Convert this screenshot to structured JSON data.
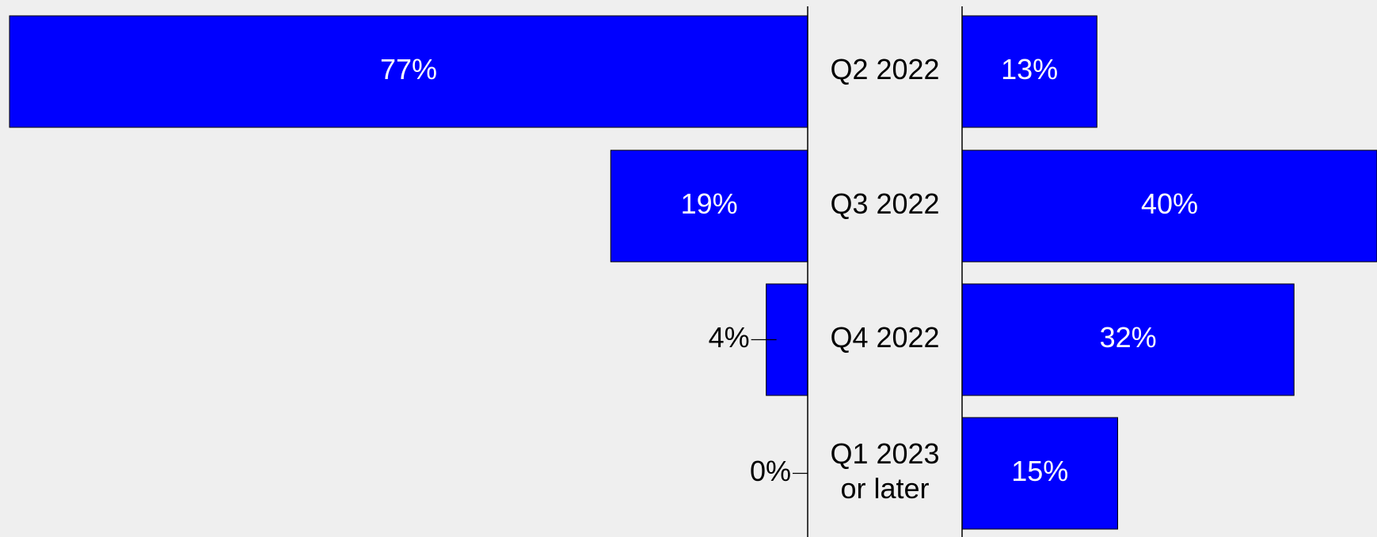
{
  "chart_data": {
    "type": "bar",
    "layout": "butterfly",
    "categories": [
      "Q2 2022",
      "Q3 2022",
      "Q4 2022",
      "Q1 2023\nor later"
    ],
    "series": [
      {
        "values": [
          77,
          19,
          4,
          0
        ],
        "labels": [
          "77%",
          "19%",
          "4%",
          "0%"
        ]
      },
      {
        "values": [
          13,
          40,
          32,
          15
        ],
        "labels": [
          "13%",
          "40%",
          "32%",
          "15%"
        ]
      }
    ],
    "title": "",
    "xlabel": "",
    "ylabel": "",
    "xlim": [
      0,
      77
    ],
    "grid": false,
    "legend": "none",
    "colors": {
      "bar": "#0000ff",
      "bar_edge": "#000000",
      "background": "#efefef"
    }
  }
}
